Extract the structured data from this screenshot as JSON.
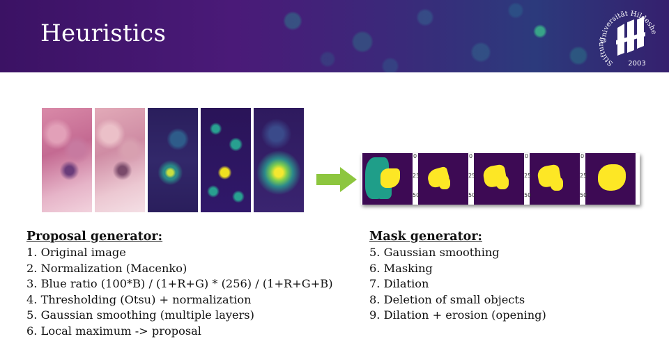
{
  "header": {
    "title": "Heuristics",
    "logo": {
      "top_text": "Universität Hildesheim",
      "left_text": "Stiftung",
      "year": "2003"
    }
  },
  "figures": {
    "proposal_panels": [
      "Original image",
      "Normalization",
      "Blue ratio",
      "Thresholding",
      "Gaussian smoothing"
    ],
    "mask_tick_labels": [
      "0",
      "25",
      "50"
    ]
  },
  "proposal": {
    "heading": "Proposal generator:",
    "items": [
      "1. Original image",
      "2. Normalization (Macenko)",
      "3. Blue ratio (100*B) / (1+R+G) * (256) / (1+R+G+B)",
      "4. Thresholding (Otsu) + normalization",
      "5. Gaussian smoothing (multiple layers)",
      "6. Local maximum -> proposal"
    ]
  },
  "mask": {
    "heading": "Mask generator:",
    "items": [
      "5. Gaussian smoothing",
      "6. Masking",
      "7. Dilation",
      "8. Deletion of small objects",
      "9. Dilation + erosion (opening)"
    ]
  },
  "colors": {
    "banner": "#3b1264",
    "arrow": "#8dc63f",
    "mask_background": "#3d0a54",
    "mask_yellow": "#fde725",
    "mask_teal": "#1f9e89"
  }
}
